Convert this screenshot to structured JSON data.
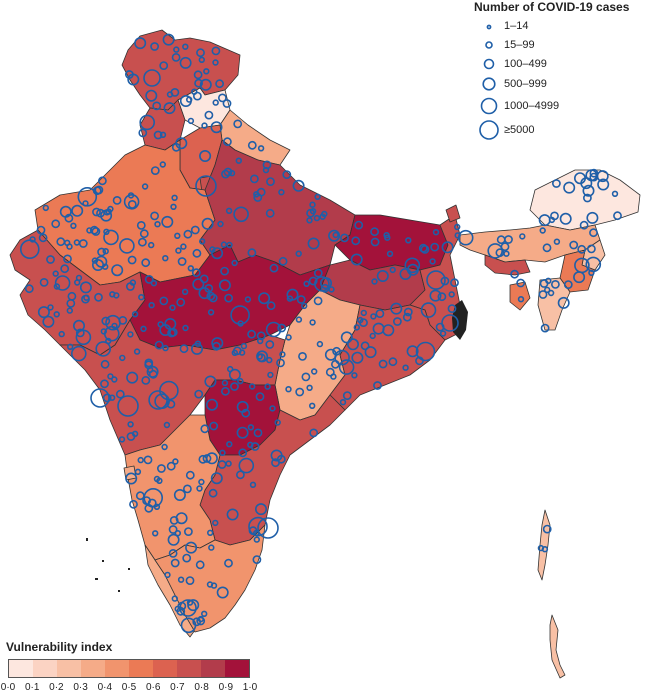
{
  "legend": {
    "title": "Number of COVID-19 cases",
    "items": [
      "1–14",
      "15–99",
      "100–499",
      "500–999",
      "1000–4999",
      "≥5000"
    ],
    "circle_color": "#1f5fa8"
  },
  "scale": {
    "title": "Vulnerability index",
    "ticks": [
      "0·0",
      "0·1",
      "0·2",
      "0·3",
      "0·4",
      "0·5",
      "0·6",
      "0·7",
      "0·8",
      "0·9",
      "1·0"
    ],
    "colors": [
      "#fde7df",
      "#fbd3c3",
      "#f8c0a5",
      "#f5ab88",
      "#f1946d",
      "#eb7a55",
      "#dc6250",
      "#c8504f",
      "#b23c4b",
      "#a3123a"
    ]
  },
  "regions": [
    {
      "name": "Jammu and Kashmir",
      "fill": "#c8504f"
    },
    {
      "name": "Himachal Pradesh",
      "fill": "#fde7df"
    },
    {
      "name": "Punjab",
      "fill": "#c8504f"
    },
    {
      "name": "Uttarakhand",
      "fill": "#f5ab88"
    },
    {
      "name": "Haryana",
      "fill": "#dc6250"
    },
    {
      "name": "Delhi",
      "fill": "#c8504f"
    },
    {
      "name": "Rajasthan",
      "fill": "#eb7a55"
    },
    {
      "name": "Gujarat",
      "fill": "#c8504f"
    },
    {
      "name": "Uttar Pradesh",
      "fill": "#b23c4b"
    },
    {
      "name": "Bihar",
      "fill": "#a3123a"
    },
    {
      "name": "Madhya Pradesh",
      "fill": "#a3123a"
    },
    {
      "name": "Jharkhand",
      "fill": "#b23c4b"
    },
    {
      "name": "West Bengal",
      "fill": "#c8504f"
    },
    {
      "name": "Chhattisgarh",
      "fill": "#f5ab88"
    },
    {
      "name": "Odisha",
      "fill": "#c8504f"
    },
    {
      "name": "Maharashtra",
      "fill": "#c8504f"
    },
    {
      "name": "Telangana",
      "fill": "#a3123a"
    },
    {
      "name": "Andhra Pradesh",
      "fill": "#c8504f"
    },
    {
      "name": "Karnataka",
      "fill": "#f1946d"
    },
    {
      "name": "Goa",
      "fill": "#f5ab88"
    },
    {
      "name": "Kerala",
      "fill": "#f5ab88"
    },
    {
      "name": "Tamil Nadu",
      "fill": "#f1946d"
    },
    {
      "name": "Sikkim",
      "fill": "#c8504f"
    },
    {
      "name": "Arunachal Pradesh",
      "fill": "#fde7df"
    },
    {
      "name": "Assam",
      "fill": "#f5ab88"
    },
    {
      "name": "Meghalaya",
      "fill": "#c8504f"
    },
    {
      "name": "Nagaland",
      "fill": "#f8c0a5"
    },
    {
      "name": "Manipur",
      "fill": "#eb7a55"
    },
    {
      "name": "Mizoram",
      "fill": "#f8c0a5"
    },
    {
      "name": "Tripura",
      "fill": "#eb7a55"
    },
    {
      "name": "Andaman and Nicobar Islands",
      "fill": "#f8c0a5"
    }
  ]
}
